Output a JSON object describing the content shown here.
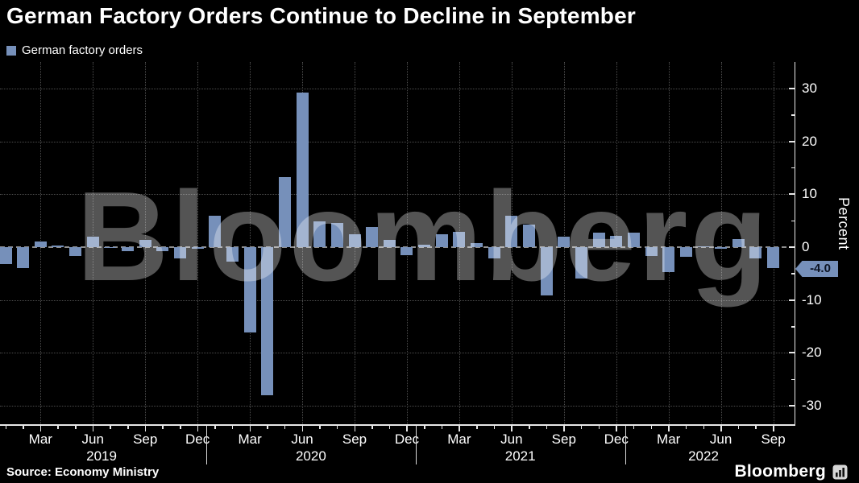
{
  "title": "German Factory Orders Continue to Decline in September",
  "legend": {
    "label": "German factory orders",
    "swatch_color": "#7690ba"
  },
  "watermark": "Bloomberg",
  "source": "Source: Economy Ministry",
  "branding": {
    "logo_text": "Bloomberg",
    "logo_icon": "bar-chart-icon"
  },
  "colors": {
    "background": "#000000",
    "bar": "#7690ba",
    "grid": "#4d4d4d",
    "zero_line": "#8f8f8f",
    "axis": "#e8e8e8",
    "text": "#ffffff",
    "watermark": "rgba(255,255,255,0.33)",
    "tag_background": "#7690ba",
    "tag_text": "#0c1322"
  },
  "chart_data": {
    "type": "bar",
    "title": "German Factory Orders Continue to Decline in September",
    "series_name": "German factory orders",
    "ylabel": "Percent",
    "ylim": [
      -33.5,
      35
    ],
    "grid": true,
    "legend_position": "top-left",
    "frequency": "monthly",
    "x": [
      "2019-01",
      "2019-02",
      "2019-03",
      "2019-04",
      "2019-05",
      "2019-06",
      "2019-07",
      "2019-08",
      "2019-09",
      "2019-10",
      "2019-11",
      "2019-12",
      "2020-01",
      "2020-02",
      "2020-03",
      "2020-04",
      "2020-05",
      "2020-06",
      "2020-07",
      "2020-08",
      "2020-09",
      "2020-10",
      "2020-11",
      "2020-12",
      "2021-01",
      "2021-02",
      "2021-03",
      "2021-04",
      "2021-05",
      "2021-06",
      "2021-07",
      "2021-08",
      "2021-09",
      "2021-10",
      "2021-11",
      "2021-12",
      "2022-01",
      "2022-02",
      "2022-03",
      "2022-04",
      "2022-05",
      "2022-06",
      "2022-07",
      "2022-08",
      "2022-09"
    ],
    "values": [
      -3.2,
      -3.9,
      1.1,
      0.3,
      -1.6,
      2.0,
      -0.2,
      -0.8,
      1.3,
      -0.7,
      -2.2,
      -0.3,
      5.9,
      -2.7,
      -16.1,
      -28.0,
      13.2,
      29.2,
      4.8,
      4.6,
      2.4,
      3.8,
      1.3,
      -1.5,
      0.4,
      2.4,
      2.9,
      0.8,
      -2.2,
      5.9,
      4.3,
      -9.2,
      2.0,
      -6.0,
      2.8,
      2.2,
      2.8,
      -1.6,
      -4.7,
      -1.9,
      0.1,
      -0.3,
      1.5,
      -2.2,
      -4.0
    ],
    "yticks": [
      {
        "value": 30,
        "label": "30"
      },
      {
        "value": 20,
        "label": "20"
      },
      {
        "value": 10,
        "label": "10"
      },
      {
        "value": 0,
        "label": "0"
      },
      {
        "value": -10,
        "label": "-10"
      },
      {
        "value": -20,
        "label": "-20"
      },
      {
        "value": -30,
        "label": "-30"
      }
    ],
    "yticks_minor": [
      25,
      15,
      5,
      -5,
      -15,
      -25
    ],
    "month_ticks": [
      {
        "index": 2,
        "label": "Mar"
      },
      {
        "index": 5,
        "label": "Jun"
      },
      {
        "index": 8,
        "label": "Sep"
      },
      {
        "index": 11,
        "label": "Dec"
      },
      {
        "index": 14,
        "label": "Mar"
      },
      {
        "index": 17,
        "label": "Jun"
      },
      {
        "index": 20,
        "label": "Sep"
      },
      {
        "index": 23,
        "label": "Dec"
      },
      {
        "index": 26,
        "label": "Mar"
      },
      {
        "index": 29,
        "label": "Jun"
      },
      {
        "index": 32,
        "label": "Sep"
      },
      {
        "index": 35,
        "label": "Dec"
      },
      {
        "index": 38,
        "label": "Mar"
      },
      {
        "index": 41,
        "label": "Jun"
      },
      {
        "index": 44,
        "label": "Sep"
      }
    ],
    "year_labels": [
      {
        "label": "2019",
        "from_index": 0,
        "to_index": 11
      },
      {
        "label": "2020",
        "from_index": 12,
        "to_index": 23
      },
      {
        "label": "2021",
        "from_index": 24,
        "to_index": 35
      },
      {
        "label": "2022",
        "from_index": 36,
        "to_index": 44
      }
    ],
    "last_value_tag": "-4.0"
  }
}
